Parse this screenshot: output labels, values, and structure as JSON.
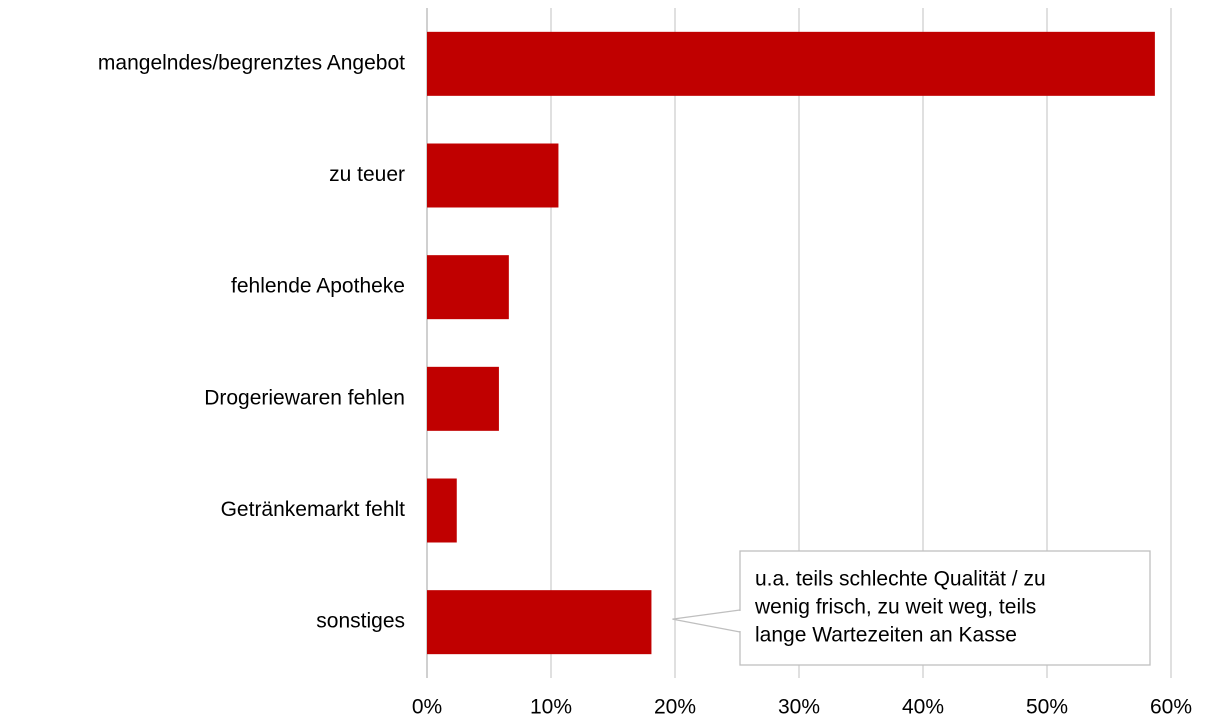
{
  "chart_data": {
    "type": "barh",
    "categories": [
      "mangelndes/begrenztes Angebot",
      "zu teuer",
      "fehlende Apotheke",
      "Drogeriewaren fehlen",
      "Getränkemarkt fehlt",
      "sonstiges"
    ],
    "values": [
      58.7,
      10.6,
      6.6,
      5.8,
      2.4,
      18.1
    ],
    "color": "#c00000",
    "xlim": [
      0,
      60
    ],
    "xticks": [
      {
        "value": 0,
        "label": "0%"
      },
      {
        "value": 10,
        "label": "10%"
      },
      {
        "value": 20,
        "label": "20%"
      },
      {
        "value": 30,
        "label": "30%"
      },
      {
        "value": 40,
        "label": "40%"
      },
      {
        "value": 50,
        "label": "50%"
      },
      {
        "value": 60,
        "label": "60%"
      }
    ],
    "grid": true,
    "annotation": {
      "category_index": 5,
      "lines": [
        "u.a. teils schlechte Qualität / zu",
        "wenig frisch, zu weit weg, teils",
        "lange Wartezeiten an Kasse"
      ]
    }
  }
}
